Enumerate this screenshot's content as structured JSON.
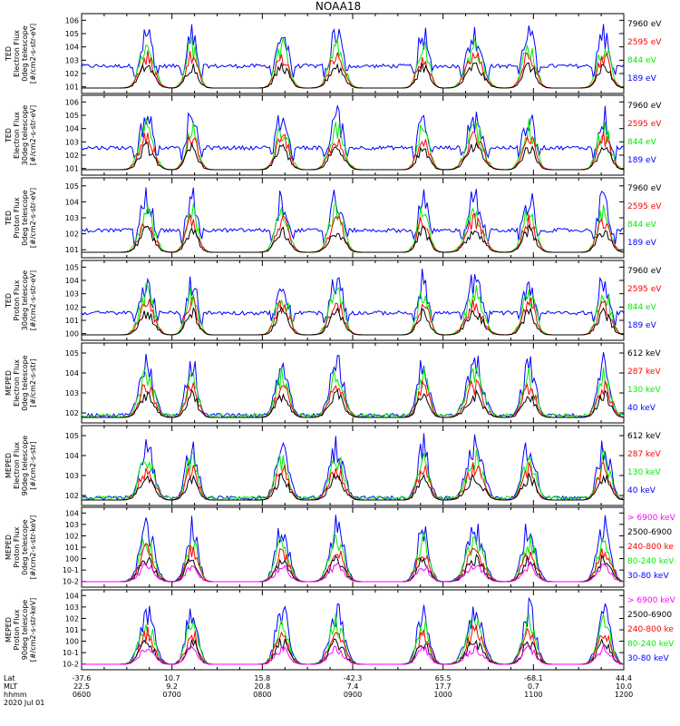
{
  "title": "NOAA18",
  "colors": {
    "blue": "#0000ff",
    "red": "#ff0000",
    "green": "#00ee00",
    "black": "#000000",
    "magenta": "#ff00ff"
  },
  "chart_data": {
    "type": "scatter",
    "title": "NOAA18",
    "x_axis": {
      "rows": [
        {
          "label": "Lat",
          "values": [
            "-37.6",
            "10.7",
            "15.8",
            "-42.3",
            "65.5",
            "-68.1",
            "44.4"
          ]
        },
        {
          "label": "MLT",
          "values": [
            "22.5",
            "9.2",
            "20.8",
            "7.4",
            "17.7",
            "0.7",
            "10.0"
          ]
        },
        {
          "label": "hhmm",
          "values": [
            "0600",
            "0700",
            "0800",
            "0900",
            "1000",
            "1100",
            "1200"
          ]
        }
      ],
      "date": "2020 Jul 01",
      "range_hours": [
        6,
        12
      ]
    },
    "panels": [
      {
        "ylabel": [
          "TED",
          "Electron Flux",
          "0deg telescope",
          "[#/cm2-s-str-eV]"
        ],
        "yticks": [
          "10^1",
          "10^2",
          "10^3",
          "10^4",
          "10^5",
          "10^6"
        ],
        "legend": [
          {
            "text": "7960 eV",
            "color": "black"
          },
          {
            "text": "2595 eV",
            "color": "red"
          },
          {
            "text": "844 eV",
            "color": "green"
          },
          {
            "text": "189 eV",
            "color": "blue"
          }
        ]
      },
      {
        "ylabel": [
          "TED",
          "Electron Flux",
          "30deg telescope",
          "[#/cm2-s-str-eV]"
        ],
        "yticks": [
          "10^1",
          "10^2",
          "10^3",
          "10^4",
          "10^5",
          "10^6"
        ],
        "legend": [
          {
            "text": "7960 eV",
            "color": "black"
          },
          {
            "text": "2595 eV",
            "color": "red"
          },
          {
            "text": "844 eV",
            "color": "green"
          },
          {
            "text": "189 eV",
            "color": "blue"
          }
        ]
      },
      {
        "ylabel": [
          "TED",
          "Proton Flux",
          "0deg telescope",
          "[#/cm2-s-str-eV]"
        ],
        "yticks": [
          "10^1",
          "10^2",
          "10^3",
          "10^4",
          "10^5"
        ],
        "legend": [
          {
            "text": "7960 eV",
            "color": "black"
          },
          {
            "text": "2595 eV",
            "color": "red"
          },
          {
            "text": "844 eV",
            "color": "green"
          },
          {
            "text": "189 eV",
            "color": "blue"
          }
        ]
      },
      {
        "ylabel": [
          "TED",
          "Proton Flux",
          "30deg telescope",
          "[#/cm2-s-str-eV]"
        ],
        "yticks": [
          "10^0",
          "10^1",
          "10^2",
          "10^3",
          "10^4",
          "10^5"
        ],
        "legend": [
          {
            "text": "7960 eV",
            "color": "black"
          },
          {
            "text": "2595 eV",
            "color": "red"
          },
          {
            "text": "844 eV",
            "color": "green"
          },
          {
            "text": "189 eV",
            "color": "blue"
          }
        ]
      },
      {
        "ylabel": [
          "MEPED",
          "Electron Flux",
          "0deg telescope",
          "[#/cm2-s-str]"
        ],
        "yticks": [
          "10^2",
          "10^3",
          "10^4",
          "10^5"
        ],
        "legend": [
          {
            "text": "612 keV",
            "color": "black"
          },
          {
            "text": "287 keV",
            "color": "red"
          },
          {
            "text": "130 keV",
            "color": "green"
          },
          {
            "text": "40 keV",
            "color": "blue"
          }
        ]
      },
      {
        "ylabel": [
          "MEPED",
          "Electron Flux",
          "90deg telescope",
          "[#/cm2-s-str]"
        ],
        "yticks": [
          "10^2",
          "10^3",
          "10^4",
          "10^5"
        ],
        "legend": [
          {
            "text": "612 keV",
            "color": "black"
          },
          {
            "text": "287 keV",
            "color": "red"
          },
          {
            "text": "130 keV",
            "color": "green"
          },
          {
            "text": "40 keV",
            "color": "blue"
          }
        ]
      },
      {
        "ylabel": [
          "MEPED",
          "Proton Flux",
          "0deg telescope",
          "[#/cm2-s-str-keV]"
        ],
        "yticks": [
          "10^-2",
          "10^-1",
          "10^0",
          "10^1",
          "10^2",
          "10^3",
          "10^4"
        ],
        "legend": [
          {
            "text": "> 6900 keV",
            "color": "magenta"
          },
          {
            "text": "2500-6900",
            "color": "black"
          },
          {
            "text": "240-800 ke",
            "color": "red"
          },
          {
            "text": "80-240 keV",
            "color": "green"
          },
          {
            "text": "30-80 keV",
            "color": "blue"
          }
        ]
      },
      {
        "ylabel": [
          "MEPED",
          "Proton Flux",
          "90deg telescope",
          "[#/cm2-s-str-keV]"
        ],
        "yticks": [
          "10^-2",
          "10^-1",
          "10^0",
          "10^1",
          "10^2",
          "10^3",
          "10^4"
        ],
        "legend": [
          {
            "text": "> 6900 keV",
            "color": "magenta"
          },
          {
            "text": "2500-6900",
            "color": "black"
          },
          {
            "text": "240-800 ke",
            "color": "red"
          },
          {
            "text": "80-240 keV",
            "color": "green"
          },
          {
            "text": "30-80 keV",
            "color": "blue"
          }
        ]
      }
    ],
    "passes_hours": [
      {
        "center": 6.72,
        "width": 0.22
      },
      {
        "center": 7.22,
        "width": 0.18
      },
      {
        "center": 8.22,
        "width": 0.2
      },
      {
        "center": 8.82,
        "width": 0.22
      },
      {
        "center": 9.78,
        "width": 0.18
      },
      {
        "center": 10.35,
        "width": 0.25
      },
      {
        "center": 10.95,
        "width": 0.2
      },
      {
        "center": 11.78,
        "width": 0.2
      }
    ]
  }
}
